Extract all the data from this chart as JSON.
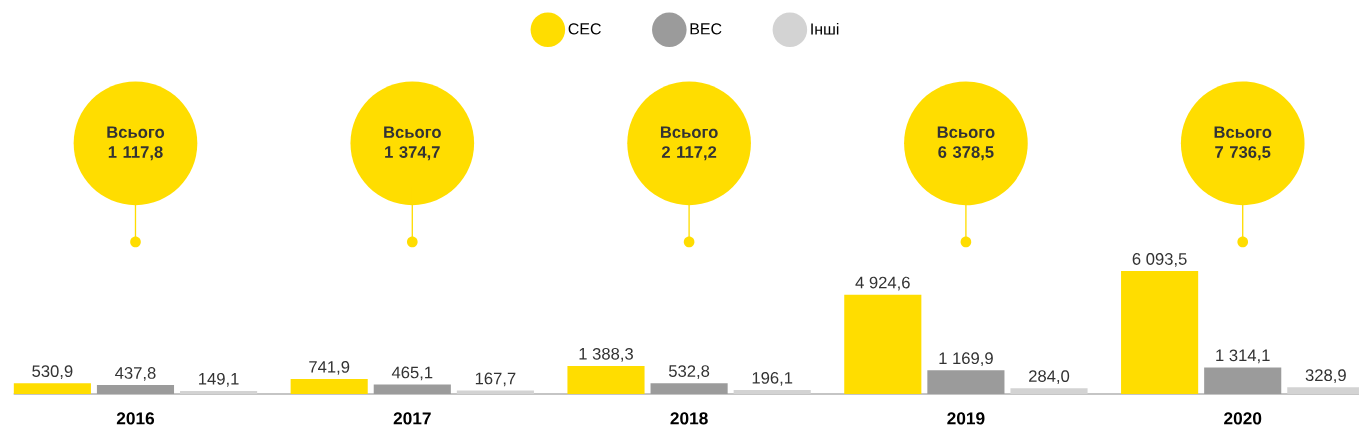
{
  "chart_data": {
    "type": "bar",
    "categories": [
      "2016",
      "2017",
      "2018",
      "2019",
      "2020"
    ],
    "series": [
      {
        "name": "СЕС",
        "color": "#ffdd00",
        "values": [
          530.9,
          741.9,
          1388.3,
          4924.6,
          6093.5
        ],
        "value_labels": [
          "530,9",
          "741,9",
          "1 388,3",
          "4 924,6",
          "6 093,5"
        ]
      },
      {
        "name": "ВЕС",
        "color": "#9b9b9b",
        "values": [
          437.8,
          465.1,
          532.8,
          1169.9,
          1314.1
        ],
        "value_labels": [
          "437,8",
          "465,1",
          "532,8",
          "1 169,9",
          "1 314,1"
        ]
      },
      {
        "name": "Інші",
        "color": "#d3d3d3",
        "values": [
          149.1,
          167.7,
          196.1,
          284.0,
          328.9
        ],
        "value_labels": [
          "149,1",
          "167,7",
          "196,1",
          "284,0",
          "328,9"
        ]
      }
    ],
    "annotations": [
      "Всього 1 117,8",
      "Всього 1 374,7",
      "Всього 2 117,2",
      "Всього 6 378,5",
      "Всього 7 736,5"
    ],
    "legend": "top"
  }
}
